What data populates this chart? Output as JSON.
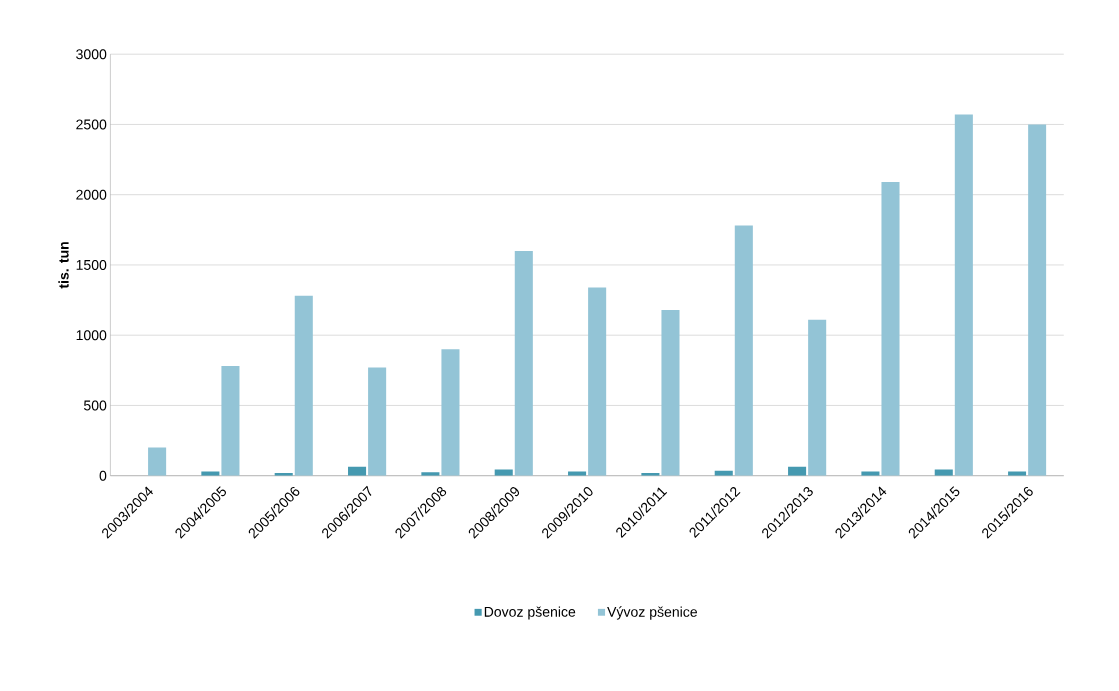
{
  "chart_data": {
    "type": "bar",
    "ylabel": "tis. tun",
    "categories": [
      "2003/2004",
      "2004/2005",
      "2005/2006",
      "2006/2007",
      "2007/2008",
      "2008/2009",
      "2009/2010",
      "2010/2011",
      "2011/2012",
      "2012/2013",
      "2013/2014",
      "2014/2015",
      "2015/2016"
    ],
    "series": [
      {
        "name": "Dovoz pšenice",
        "color": "#4599b0",
        "values": [
          0,
          30,
          20,
          65,
          25,
          45,
          30,
          20,
          35,
          65,
          30,
          45,
          30
        ]
      },
      {
        "name": "Vývoz pšenice",
        "color": "#93c4d6",
        "values": [
          200,
          780,
          1280,
          770,
          900,
          1600,
          1340,
          1180,
          1780,
          1110,
          2090,
          2570,
          2500
        ]
      }
    ],
    "ylim": [
      0,
      3000
    ],
    "yticks": [
      0,
      500,
      1000,
      1500,
      2000,
      2500,
      3000
    ],
    "grid": "y",
    "legend": "bottom"
  }
}
